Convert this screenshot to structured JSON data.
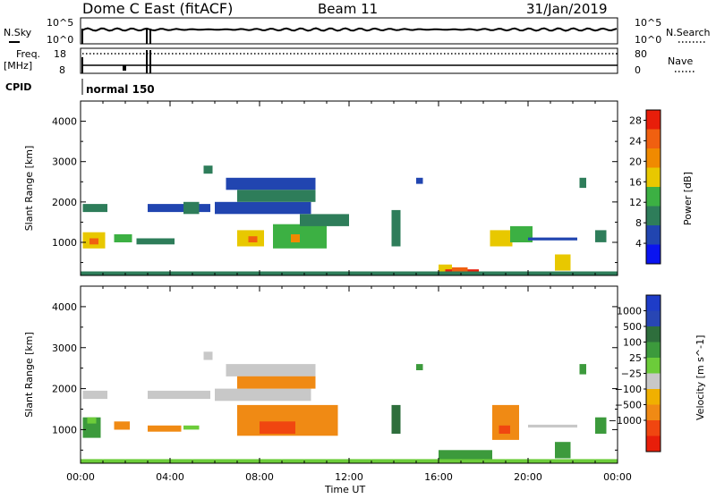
{
  "header": {
    "title": "Dome C East (fitACF)",
    "beam": "Beam 11",
    "date": "31/Jan/2019"
  },
  "panels": {
    "nsky": {
      "label": "N.Sky",
      "right_label": "N.Search",
      "left_ticks": [
        "10^5",
        "10^0"
      ],
      "right_ticks": [
        "10^5",
        "10^0"
      ]
    },
    "freq": {
      "label_line1": "Freq.",
      "label_line2": "[MHz]",
      "right_label": "Nave",
      "left_ticks": [
        "18",
        "8"
      ],
      "right_ticks": [
        "80",
        "0"
      ]
    },
    "cpid": {
      "label": "CPID",
      "mode": "normal 150"
    }
  },
  "time_axis": {
    "label": "Time UT",
    "ticks": [
      "00:00",
      "04:00",
      "08:00",
      "12:00",
      "16:00",
      "20:00",
      "00:00"
    ]
  },
  "colors": {
    "power_scale": [
      "#0a14f0",
      "#2145b0",
      "#2e7d5a",
      "#3cb043",
      "#e8c800",
      "#f08a00",
      "#f06010",
      "#e81e0a"
    ],
    "velocity_scale": [
      "#1e3cc8",
      "#2846b4",
      "#2e6e3c",
      "#3c9a3c",
      "#6ccc3a",
      "#c8c8c8",
      "#f0b000",
      "#f08a14",
      "#f04610",
      "#e81e0a"
    ]
  },
  "chart_data": [
    {
      "type": "heatmap",
      "title": "",
      "quantity": "Power",
      "xlabel": "Time UT",
      "ylabel": "Slant Range [km]",
      "xlim_hours": [
        0,
        24
      ],
      "ylim": [
        180,
        4500
      ],
      "yticks": [
        1000,
        2000,
        3000,
        4000
      ],
      "colorbar_label": "Power [dB]",
      "colorbar_ticks": [
        "4",
        "8",
        "12",
        "16",
        "20",
        "24",
        "28"
      ],
      "colorbar_range": [
        0,
        30
      ],
      "regions": [
        {
          "t0": 0.1,
          "t1": 1.2,
          "r0": 1750,
          "r1": 1950,
          "level": 2
        },
        {
          "t0": 0.1,
          "t1": 1.1,
          "r0": 850,
          "r1": 1250,
          "level": 4
        },
        {
          "t0": 0.4,
          "t1": 0.8,
          "r0": 950,
          "r1": 1100,
          "level": 6
        },
        {
          "t0": 1.5,
          "t1": 2.3,
          "r0": 1000,
          "r1": 1200,
          "level": 3
        },
        {
          "t0": 2.5,
          "t1": 4.2,
          "r0": 950,
          "r1": 1100,
          "level": 2
        },
        {
          "t0": 3.0,
          "t1": 5.8,
          "r0": 1750,
          "r1": 1950,
          "level": 1
        },
        {
          "t0": 4.6,
          "t1": 5.3,
          "r0": 1700,
          "r1": 2000,
          "level": 2
        },
        {
          "t0": 5.5,
          "t1": 5.9,
          "r0": 2700,
          "r1": 2900,
          "level": 2
        },
        {
          "t0": 6.0,
          "t1": 10.3,
          "r0": 1700,
          "r1": 2000,
          "level": 1
        },
        {
          "t0": 6.5,
          "t1": 10.5,
          "r0": 2300,
          "r1": 2600,
          "level": 1
        },
        {
          "t0": 7.0,
          "t1": 10.5,
          "r0": 2000,
          "r1": 2300,
          "level": 2
        },
        {
          "t0": 7.0,
          "t1": 8.2,
          "r0": 900,
          "r1": 1300,
          "level": 4
        },
        {
          "t0": 7.5,
          "t1": 7.9,
          "r0": 1000,
          "r1": 1150,
          "level": 6
        },
        {
          "t0": 8.6,
          "t1": 11.0,
          "r0": 850,
          "r1": 1450,
          "level": 3
        },
        {
          "t0": 9.4,
          "t1": 9.8,
          "r0": 1000,
          "r1": 1200,
          "level": 5
        },
        {
          "t0": 9.8,
          "t1": 12.0,
          "r0": 1400,
          "r1": 1700,
          "level": 2
        },
        {
          "t0": 13.9,
          "t1": 14.3,
          "r0": 900,
          "r1": 1800,
          "level": 2
        },
        {
          "t0": 15.0,
          "t1": 15.3,
          "r0": 2450,
          "r1": 2600,
          "level": 1
        },
        {
          "t0": 16.0,
          "t1": 16.6,
          "r0": 280,
          "r1": 450,
          "level": 4
        },
        {
          "t0": 16.3,
          "t1": 17.8,
          "r0": 190,
          "r1": 330,
          "level": 7
        },
        {
          "t0": 16.6,
          "t1": 17.3,
          "r0": 260,
          "r1": 380,
          "level": 6
        },
        {
          "t0": 18.3,
          "t1": 19.3,
          "r0": 900,
          "r1": 1300,
          "level": 4
        },
        {
          "t0": 19.2,
          "t1": 20.2,
          "r0": 1000,
          "r1": 1400,
          "level": 3
        },
        {
          "t0": 20.0,
          "t1": 22.2,
          "r0": 1050,
          "r1": 1120,
          "level": 1
        },
        {
          "t0": 21.2,
          "t1": 21.9,
          "r0": 300,
          "r1": 700,
          "level": 4
        },
        {
          "t0": 22.3,
          "t1": 22.6,
          "r0": 2350,
          "r1": 2600,
          "level": 2
        },
        {
          "t0": 23.0,
          "t1": 23.5,
          "r0": 1000,
          "r1": 1300,
          "level": 2
        },
        {
          "t0": 0.0,
          "t1": 24.0,
          "r0": 190,
          "r1": 280,
          "level": 2
        }
      ]
    },
    {
      "type": "heatmap",
      "title": "",
      "quantity": "Velocity",
      "xlabel": "Time UT",
      "ylabel": "Slant Range [km]",
      "xlim_hours": [
        0,
        24
      ],
      "ylim": [
        180,
        4500
      ],
      "yticks": [
        1000,
        2000,
        3000,
        4000
      ],
      "colorbar_label": "Velocity [m s^-1]",
      "colorbar_ticks": [
        "1000",
        "500",
        "100",
        "25",
        "−25",
        "−100",
        "−500",
        "−1000"
      ],
      "regions": [
        {
          "t0": 0.1,
          "t1": 1.2,
          "r0": 1750,
          "r1": 1950,
          "level": 5
        },
        {
          "t0": 0.1,
          "t1": 0.9,
          "r0": 800,
          "r1": 1300,
          "level": 3
        },
        {
          "t0": 0.3,
          "t1": 0.7,
          "r0": 1150,
          "r1": 1300,
          "level": 4
        },
        {
          "t0": 1.5,
          "t1": 2.2,
          "r0": 1000,
          "r1": 1200,
          "level": 7
        },
        {
          "t0": 3.0,
          "t1": 5.8,
          "r0": 1750,
          "r1": 1950,
          "level": 5
        },
        {
          "t0": 4.6,
          "t1": 5.3,
          "r0": 1000,
          "r1": 1100,
          "level": 4
        },
        {
          "t0": 3.0,
          "t1": 4.5,
          "r0": 950,
          "r1": 1100,
          "level": 7
        },
        {
          "t0": 5.5,
          "t1": 5.9,
          "r0": 2700,
          "r1": 2900,
          "level": 5
        },
        {
          "t0": 6.0,
          "t1": 10.3,
          "r0": 1700,
          "r1": 2000,
          "level": 5
        },
        {
          "t0": 6.5,
          "t1": 10.5,
          "r0": 2300,
          "r1": 2600,
          "level": 5
        },
        {
          "t0": 7.0,
          "t1": 10.5,
          "r0": 2000,
          "r1": 2300,
          "level": 7
        },
        {
          "t0": 7.0,
          "t1": 11.5,
          "r0": 850,
          "r1": 1600,
          "level": 7
        },
        {
          "t0": 8.0,
          "t1": 9.6,
          "r0": 900,
          "r1": 1200,
          "level": 8
        },
        {
          "t0": 13.9,
          "t1": 14.3,
          "r0": 900,
          "r1": 1600,
          "level": 2
        },
        {
          "t0": 15.0,
          "t1": 15.3,
          "r0": 2450,
          "r1": 2600,
          "level": 3
        },
        {
          "t0": 16.0,
          "t1": 18.4,
          "r0": 190,
          "r1": 500,
          "level": 3
        },
        {
          "t0": 18.4,
          "t1": 19.6,
          "r0": 750,
          "r1": 1600,
          "level": 7
        },
        {
          "t0": 18.7,
          "t1": 19.2,
          "r0": 900,
          "r1": 1100,
          "level": 8
        },
        {
          "t0": 20.0,
          "t1": 22.2,
          "r0": 1050,
          "r1": 1120,
          "level": 5
        },
        {
          "t0": 21.2,
          "t1": 21.9,
          "r0": 300,
          "r1": 700,
          "level": 3
        },
        {
          "t0": 22.3,
          "t1": 22.6,
          "r0": 2350,
          "r1": 2600,
          "level": 3
        },
        {
          "t0": 23.0,
          "t1": 23.5,
          "r0": 900,
          "r1": 1300,
          "level": 3
        },
        {
          "t0": 0.0,
          "t1": 24.0,
          "r0": 190,
          "r1": 280,
          "level": 4
        }
      ]
    }
  ]
}
